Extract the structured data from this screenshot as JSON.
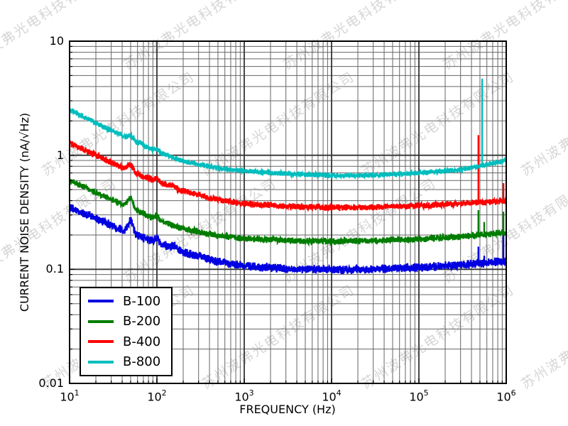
{
  "watermark": {
    "text": "苏州波弗光电科技有限公司",
    "color": "#d6d6d6",
    "angle_deg": -33
  },
  "chart_data": {
    "type": "line",
    "title": "",
    "xlabel": "FREQUENCY (Hz)",
    "ylabel": "CURRENT NOISE DENSITY (nA/√Hz)",
    "x_scale": "log",
    "y_scale": "log",
    "xlim": [
      10,
      1000000
    ],
    "ylim": [
      0.01,
      10
    ],
    "x_ticks": [
      {
        "base": "10",
        "exp": "1"
      },
      {
        "base": "10",
        "exp": "2"
      },
      {
        "base": "10",
        "exp": "3"
      },
      {
        "base": "10",
        "exp": "4"
      },
      {
        "base": "10",
        "exp": "5"
      },
      {
        "base": "10",
        "exp": "6"
      }
    ],
    "y_ticks": [
      "10",
      "1",
      "0.1",
      "0.01"
    ],
    "grid": {
      "which": "both",
      "major_color": "#333333",
      "minor_color": "#666666"
    },
    "frame_color": "#000000",
    "legend": {
      "position": "lower-left",
      "entries": [
        "B-100",
        "B-200",
        "B-400",
        "B-800"
      ]
    },
    "series": [
      {
        "name": "B-100",
        "color": "#0000e0",
        "noise_amp": 0.027,
        "points": [
          [
            10,
            0.345
          ],
          [
            20,
            0.28
          ],
          [
            50,
            0.205
          ],
          [
            100,
            0.172
          ],
          [
            200,
            0.142
          ],
          [
            500,
            0.117
          ],
          [
            1000,
            0.107
          ],
          [
            3000,
            0.101
          ],
          [
            10000,
            0.099
          ],
          [
            30000,
            0.1
          ],
          [
            100000,
            0.104
          ],
          [
            300000,
            0.109
          ],
          [
            1000000,
            0.118
          ]
        ],
        "bumps": [
          {
            "f": 50,
            "gain": 1.32,
            "width": 0.03
          },
          {
            "f": 100,
            "gain": 1.1,
            "width": 0.022
          },
          {
            "f": 156,
            "gain": 1.06,
            "width": 0.02
          }
        ],
        "spikes": [
          [
            480000,
            0.158
          ],
          [
            560000,
            0.132
          ],
          [
            930000,
            0.21
          ]
        ]
      },
      {
        "name": "B-200",
        "color": "#007d00",
        "noise_amp": 0.02,
        "points": [
          [
            10,
            0.6
          ],
          [
            20,
            0.47
          ],
          [
            50,
            0.345
          ],
          [
            100,
            0.272
          ],
          [
            200,
            0.228
          ],
          [
            500,
            0.197
          ],
          [
            1000,
            0.186
          ],
          [
            3000,
            0.179
          ],
          [
            10000,
            0.176
          ],
          [
            30000,
            0.178
          ],
          [
            100000,
            0.184
          ],
          [
            300000,
            0.193
          ],
          [
            1000000,
            0.21
          ]
        ],
        "bumps": [
          {
            "f": 50,
            "gain": 1.22,
            "width": 0.03
          },
          {
            "f": 100,
            "gain": 1.08,
            "width": 0.022
          }
        ],
        "spikes": [
          [
            480000,
            0.33
          ],
          [
            560000,
            0.26
          ],
          [
            930000,
            0.32
          ]
        ]
      },
      {
        "name": "B-400",
        "color": "#ff0000",
        "noise_amp": 0.02,
        "points": [
          [
            10,
            1.27
          ],
          [
            20,
            1.0
          ],
          [
            50,
            0.72
          ],
          [
            100,
            0.59
          ],
          [
            200,
            0.485
          ],
          [
            500,
            0.408
          ],
          [
            1000,
            0.376
          ],
          [
            3000,
            0.357
          ],
          [
            10000,
            0.348
          ],
          [
            30000,
            0.35
          ],
          [
            100000,
            0.36
          ],
          [
            300000,
            0.377
          ],
          [
            1000000,
            0.4
          ]
        ],
        "bumps": [
          {
            "f": 50,
            "gain": 1.14,
            "width": 0.03
          },
          {
            "f": 100,
            "gain": 1.07,
            "width": 0.022
          },
          {
            "f": 150,
            "gain": 1.05,
            "width": 0.02
          }
        ],
        "spikes": [
          [
            480000,
            1.5
          ],
          [
            930000,
            0.57
          ]
        ]
      },
      {
        "name": "B-800",
        "color": "#00bdbd",
        "noise_amp": 0.016,
        "points": [
          [
            10,
            2.5
          ],
          [
            20,
            1.92
          ],
          [
            50,
            1.36
          ],
          [
            100,
            1.08
          ],
          [
            200,
            0.89
          ],
          [
            500,
            0.77
          ],
          [
            1000,
            0.725
          ],
          [
            3000,
            0.688
          ],
          [
            10000,
            0.665
          ],
          [
            30000,
            0.67
          ],
          [
            100000,
            0.698
          ],
          [
            300000,
            0.745
          ],
          [
            1000000,
            0.9
          ]
        ],
        "bumps": [
          {
            "f": 50,
            "gain": 1.1,
            "width": 0.03
          },
          {
            "f": 100,
            "gain": 1.05,
            "width": 0.022
          },
          {
            "f": 65,
            "gain": 1.04,
            "width": 0.02
          }
        ],
        "spikes": [
          [
            530000,
            4.7
          ]
        ]
      }
    ]
  }
}
